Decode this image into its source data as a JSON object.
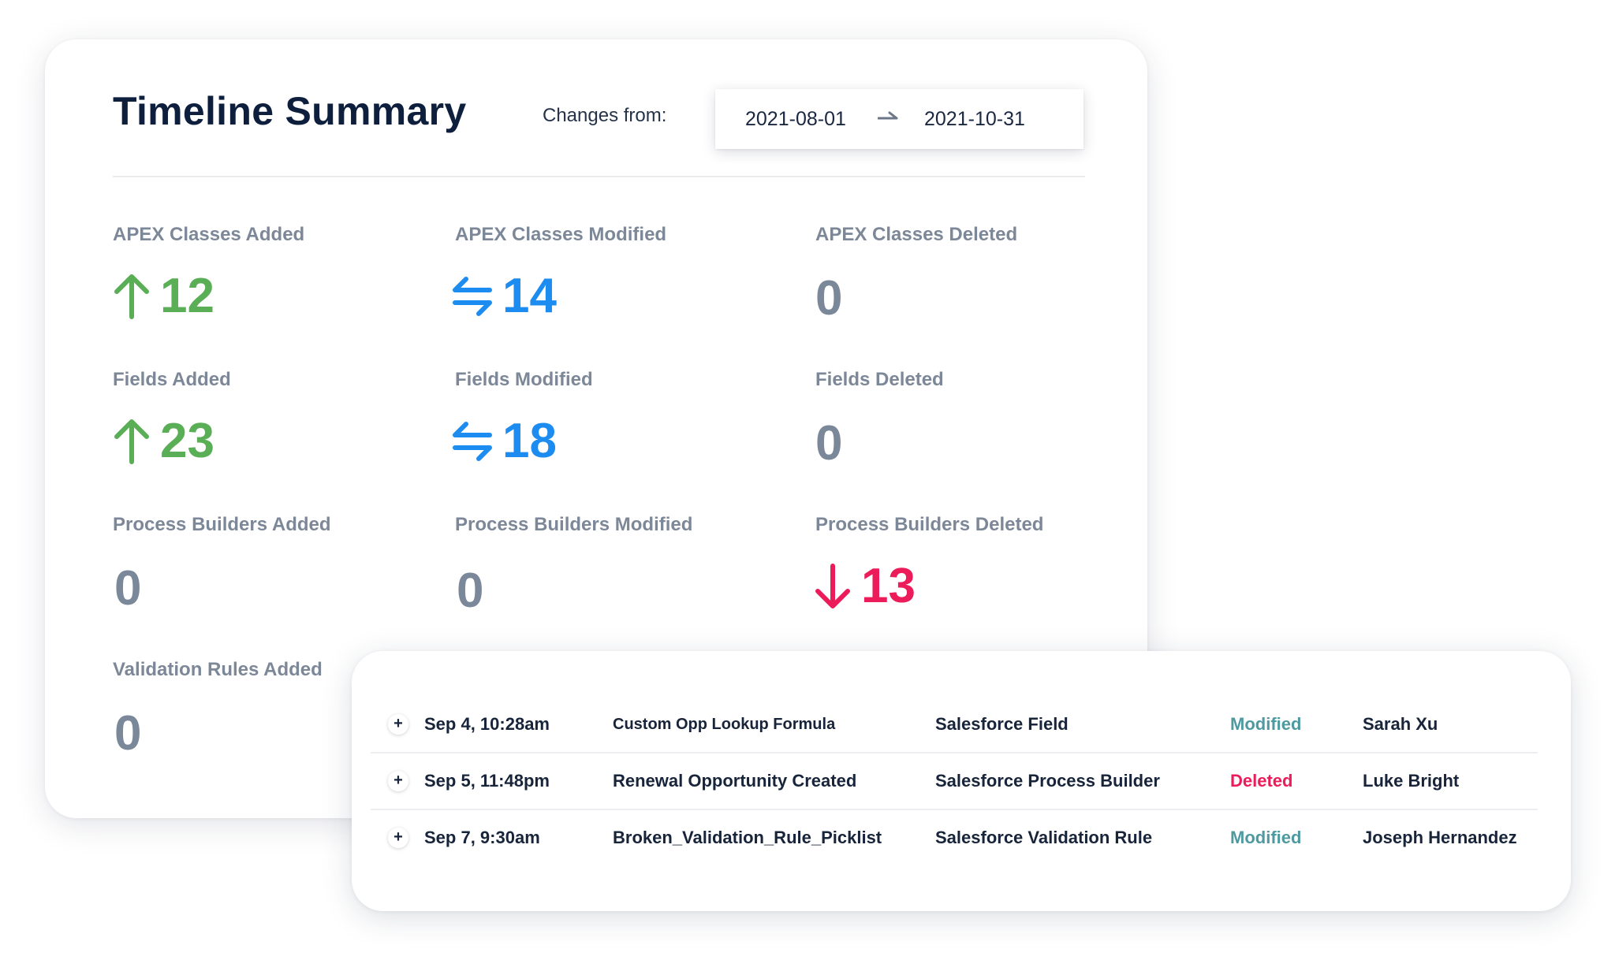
{
  "summary": {
    "title": "Timeline Summary",
    "changes_label": "Changes from:",
    "date_from": "2021-08-01",
    "date_to": "2021-10-31",
    "stats": [
      {
        "label": "APEX Classes Added",
        "value": "12",
        "trend": "added",
        "icon": "arrow-up-icon",
        "color": "#5aaf56"
      },
      {
        "label": "APEX Classes Modified",
        "value": "14",
        "trend": "modified",
        "icon": "swap-arrows-icon",
        "color": "#1d8cf0"
      },
      {
        "label": "APEX Classes Deleted",
        "value": "0",
        "trend": "none",
        "icon": "",
        "color": "#7a8899"
      },
      {
        "label": "Fields Added",
        "value": "23",
        "trend": "added",
        "icon": "arrow-up-icon",
        "color": "#5aaf56"
      },
      {
        "label": "Fields Modified",
        "value": "18",
        "trend": "modified",
        "icon": "swap-arrows-icon",
        "color": "#1d8cf0"
      },
      {
        "label": "Fields Deleted",
        "value": "0",
        "trend": "none",
        "icon": "",
        "color": "#7a8899"
      },
      {
        "label": "Process Builders Added",
        "value": "0",
        "trend": "none",
        "icon": "",
        "color": "#7a8899"
      },
      {
        "label": "Process Builders Modified",
        "value": "0",
        "trend": "none",
        "icon": "",
        "color": "#7a8899"
      },
      {
        "label": "Process Builders Deleted",
        "value": "13",
        "trend": "deleted",
        "icon": "arrow-down-icon",
        "color": "#ec1c5a"
      },
      {
        "label": "Validation Rules Added",
        "value": "0",
        "trend": "none",
        "icon": "",
        "color": "#7a8899"
      }
    ]
  },
  "changes_table": {
    "rows": [
      {
        "expand": "+",
        "date": "Sep 4, 10:28am",
        "name": "Custom Opp Lookup Formula",
        "type": "Salesforce Field",
        "status": "Modified",
        "user": "Sarah Xu"
      },
      {
        "expand": "+",
        "date": "Sep 5, 11:48pm",
        "name": "Renewal Opportunity Created",
        "type": "Salesforce Process Builder",
        "status": "Deleted",
        "user": "Luke Bright"
      },
      {
        "expand": "+",
        "date": "Sep 7, 9:30am",
        "name": "Broken_Validation_Rule_Picklist",
        "type": "Salesforce Validation Rule",
        "status": "Modified",
        "user": "Joseph Hernandez"
      }
    ]
  }
}
